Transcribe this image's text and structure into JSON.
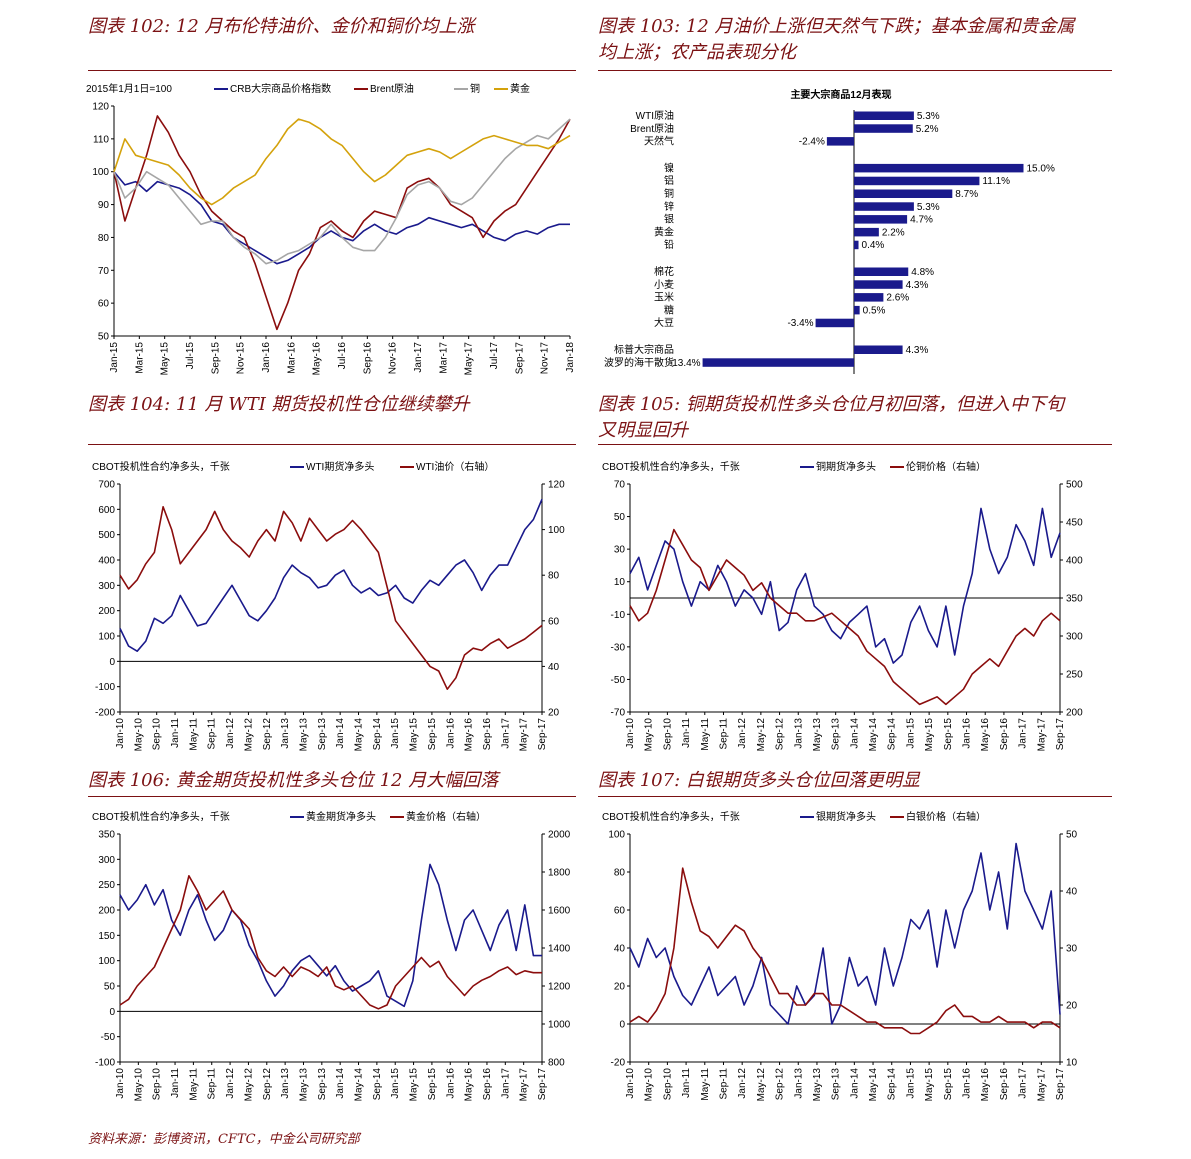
{
  "captions": {
    "c102": "图表 102: 12 月布伦特油价、金价和铜价均上涨",
    "c103_l1": "图表 103: 12 月油价上涨但天然气下跌；基本金属和贵金属",
    "c103_l2": "均上涨；农产品表现分化",
    "c104": "图表 104: 11 月 WTI 期货投机性仓位继续攀升",
    "c105_l1": "图表 105: 铜期货投机性多头仓位月初回落，但进入中下旬",
    "c105_l2": "又明显回升",
    "c106": "图表 106:  黄金期货投机性多头仓位 12 月大幅回落",
    "c107": "图表 107:  白银期货多头仓位回落更明显"
  },
  "footer": "资料来源：彭博资讯，CFTC，中金公司研究部",
  "colors": {
    "navy": "#1a1a8c",
    "maroon": "#8b0d0d",
    "gray": "#a6a6a6",
    "gold": "#d4a20c",
    "bar": "#1a1a8c",
    "neg_label": "#e02020",
    "caption": "#7b1113"
  },
  "chart_data": [
    {
      "id": "c102",
      "type": "line",
      "note": "2015年1月1日=100",
      "xlabels": [
        "Jan-15",
        "Mar-15",
        "May-15",
        "Jul-15",
        "Sep-15",
        "Nov-15",
        "Jan-16",
        "Mar-16",
        "May-16",
        "Jul-16",
        "Sep-16",
        "Nov-16",
        "Jan-17",
        "Mar-17",
        "May-17",
        "Jul-17",
        "Sep-17",
        "Nov-17",
        "Jan-18"
      ],
      "ylim": [
        50,
        120
      ],
      "yticks": [
        50,
        60,
        70,
        80,
        90,
        100,
        110,
        120
      ],
      "legend": [
        "CRB大宗商品价格指数",
        "Brent原油",
        "铜",
        "黄金"
      ],
      "series": [
        {
          "name": "CRB大宗商品价格指数",
          "color": "navy",
          "values": [
            100,
            96,
            97,
            94,
            97,
            96,
            95,
            93,
            90,
            85,
            84,
            80,
            78,
            76,
            74,
            72,
            73,
            75,
            77,
            80,
            82,
            80,
            79,
            82,
            84,
            82,
            81,
            83,
            84,
            86,
            85,
            84,
            83,
            84,
            82,
            80,
            79,
            81,
            82,
            81,
            83,
            84,
            84
          ]
        },
        {
          "name": "Brent原油",
          "color": "maroon",
          "values": [
            100,
            85,
            95,
            105,
            117,
            112,
            105,
            100,
            93,
            88,
            85,
            82,
            80,
            72,
            62,
            52,
            60,
            70,
            75,
            83,
            85,
            82,
            80,
            85,
            88,
            87,
            86,
            95,
            97,
            98,
            95,
            90,
            88,
            86,
            80,
            85,
            88,
            90,
            95,
            100,
            105,
            110,
            116
          ]
        },
        {
          "name": "铜",
          "color": "gray",
          "values": [
            100,
            92,
            95,
            100,
            98,
            96,
            92,
            88,
            84,
            85,
            85,
            80,
            77,
            75,
            72,
            73,
            75,
            76,
            78,
            80,
            84,
            80,
            77,
            76,
            76,
            80,
            86,
            93,
            96,
            97,
            95,
            91,
            90,
            92,
            96,
            100,
            104,
            107,
            109,
            111,
            110,
            113,
            116
          ]
        },
        {
          "name": "黄金",
          "color": "gold",
          "values": [
            100,
            110,
            105,
            104,
            103,
            102,
            99,
            95,
            92,
            90,
            92,
            95,
            97,
            99,
            104,
            108,
            113,
            116,
            115,
            113,
            110,
            108,
            104,
            100,
            97,
            99,
            102,
            105,
            106,
            107,
            106,
            104,
            106,
            108,
            110,
            111,
            110,
            109,
            108,
            108,
            107,
            109,
            111
          ]
        }
      ]
    },
    {
      "id": "c103",
      "type": "bar",
      "title": "主要大宗商品12月表现",
      "categories": [
        "WTI原油",
        "Brent原油",
        "天然气",
        "镍",
        "铝",
        "铜",
        "锌",
        "银",
        "黄金",
        "铅",
        "棉花",
        "小麦",
        "玉米",
        "糖",
        "大豆",
        "标普大宗商品",
        "波罗的海干散货"
      ],
      "values": [
        5.3,
        5.2,
        -2.4,
        15.0,
        11.1,
        8.7,
        5.3,
        4.7,
        2.2,
        0.4,
        4.8,
        4.3,
        2.6,
        0.5,
        -3.4,
        4.3,
        -13.4
      ],
      "labels": [
        "5.3%",
        "5.2%",
        "-2.4%",
        "15.0%",
        "11.1%",
        "8.7%",
        "5.3%",
        "4.7%",
        "2.2%",
        "0.4%",
        "4.8%",
        "4.3%",
        "2.6%",
        "0.5%",
        "-3.4%",
        "4.3%",
        "-13.4%"
      ]
    },
    {
      "id": "c104",
      "type": "line",
      "note": "CBOT投机性合约净多头，千张",
      "xlabels": [
        "Jan-10",
        "May-10",
        "Sep-10",
        "Jan-11",
        "May-11",
        "Sep-11",
        "Jan-12",
        "May-12",
        "Sep-12",
        "Jan-13",
        "May-13",
        "Sep-13",
        "Jan-14",
        "May-14",
        "Sep-14",
        "Jan-15",
        "May-15",
        "Sep-15",
        "Jan-16",
        "May-16",
        "Sep-16",
        "Jan-17",
        "May-17",
        "Sep-17"
      ],
      "ylim": [
        -200,
        700
      ],
      "yticks": [
        -200,
        -100,
        0,
        100,
        200,
        300,
        400,
        500,
        600,
        700
      ],
      "y2lim": [
        20,
        120
      ],
      "y2ticks": [
        20,
        40,
        60,
        80,
        100,
        120
      ],
      "legend": [
        "WTI期货净多头",
        "WTI油价（右轴）"
      ],
      "series": [
        {
          "name": "WTI期货净多头",
          "color": "navy",
          "axis": "left",
          "values": [
            130,
            60,
            40,
            80,
            170,
            150,
            180,
            260,
            200,
            140,
            150,
            200,
            250,
            300,
            240,
            180,
            160,
            200,
            250,
            330,
            380,
            350,
            330,
            290,
            300,
            340,
            360,
            300,
            270,
            290,
            260,
            270,
            300,
            250,
            230,
            280,
            320,
            300,
            340,
            380,
            400,
            350,
            280,
            340,
            380,
            380,
            450,
            520,
            560,
            640
          ]
        },
        {
          "name": "WTI油价（右轴）",
          "color": "maroon",
          "axis": "right",
          "values": [
            80,
            74,
            78,
            85,
            90,
            110,
            100,
            85,
            90,
            95,
            100,
            108,
            100,
            95,
            92,
            88,
            95,
            100,
            95,
            108,
            103,
            95,
            105,
            100,
            95,
            98,
            100,
            104,
            100,
            95,
            90,
            75,
            60,
            55,
            50,
            45,
            40,
            38,
            30,
            35,
            45,
            48,
            47,
            50,
            52,
            48,
            50,
            52,
            55,
            58
          ]
        }
      ]
    },
    {
      "id": "c105",
      "type": "line",
      "note": "CBOT投机性合约净多头，千张",
      "xlabels": [
        "Jan-10",
        "May-10",
        "Sep-10",
        "Jan-11",
        "May-11",
        "Sep-11",
        "Jan-12",
        "May-12",
        "Sep-12",
        "Jan-13",
        "May-13",
        "Sep-13",
        "Jan-14",
        "May-14",
        "Sep-14",
        "Jan-15",
        "May-15",
        "Sep-15",
        "Jan-16",
        "May-16",
        "Sep-16",
        "Jan-17",
        "May-17",
        "Sep-17"
      ],
      "ylim": [
        -70,
        70
      ],
      "yticks": [
        -70,
        -50,
        -30,
        -10,
        10,
        30,
        50,
        70
      ],
      "y2lim": [
        200,
        500
      ],
      "y2ticks": [
        200,
        250,
        300,
        350,
        400,
        450,
        500
      ],
      "legend": [
        "铜期货净多头",
        "伦铜价格（右轴）"
      ],
      "series": [
        {
          "name": "铜期货净多头",
          "color": "navy",
          "axis": "left",
          "values": [
            15,
            25,
            5,
            20,
            35,
            30,
            10,
            -5,
            10,
            5,
            20,
            10,
            -5,
            5,
            0,
            -10,
            10,
            -20,
            -15,
            5,
            15,
            -5,
            -10,
            -20,
            -25,
            -15,
            -10,
            -5,
            -30,
            -25,
            -40,
            -35,
            -15,
            -5,
            -20,
            -30,
            -5,
            -35,
            -5,
            15,
            55,
            30,
            15,
            25,
            45,
            35,
            20,
            55,
            25,
            40
          ]
        },
        {
          "name": "伦铜价格（右轴）",
          "color": "maroon",
          "axis": "right",
          "values": [
            340,
            320,
            330,
            360,
            400,
            440,
            420,
            400,
            390,
            360,
            380,
            400,
            390,
            380,
            360,
            370,
            350,
            340,
            330,
            330,
            320,
            320,
            325,
            330,
            320,
            310,
            300,
            280,
            270,
            260,
            240,
            230,
            220,
            210,
            215,
            220,
            210,
            220,
            230,
            250,
            260,
            270,
            260,
            280,
            300,
            310,
            300,
            320,
            330,
            320
          ]
        }
      ]
    },
    {
      "id": "c106",
      "type": "line",
      "note": "CBOT投机性合约净多头，千张",
      "xlabels": [
        "Jan-10",
        "May-10",
        "Sep-10",
        "Jan-11",
        "May-11",
        "Sep-11",
        "Jan-12",
        "May-12",
        "Sep-12",
        "Jan-13",
        "May-13",
        "Sep-13",
        "Jan-14",
        "May-14",
        "Sep-14",
        "Jan-15",
        "May-15",
        "Sep-15",
        "Jan-16",
        "May-16",
        "Sep-16",
        "Jan-17",
        "May-17",
        "Sep-17"
      ],
      "ylim": [
        -100,
        350
      ],
      "yticks": [
        -100,
        -50,
        0,
        50,
        100,
        150,
        200,
        250,
        300,
        350
      ],
      "y2lim": [
        800,
        2000
      ],
      "y2ticks": [
        800,
        1000,
        1200,
        1400,
        1600,
        1800,
        2000
      ],
      "legend": [
        "黄金期货净多头",
        "黄金价格（右轴）"
      ],
      "series": [
        {
          "name": "黄金期货净多头",
          "color": "navy",
          "axis": "left",
          "values": [
            230,
            200,
            220,
            250,
            210,
            240,
            180,
            150,
            200,
            230,
            180,
            140,
            160,
            200,
            180,
            130,
            100,
            60,
            30,
            50,
            80,
            100,
            110,
            90,
            70,
            90,
            60,
            40,
            50,
            60,
            80,
            30,
            20,
            10,
            60,
            180,
            290,
            250,
            180,
            120,
            180,
            200,
            160,
            120,
            170,
            200,
            120,
            210,
            110,
            110
          ]
        },
        {
          "name": "黄金价格（右轴）",
          "color": "maroon",
          "axis": "right",
          "values": [
            1100,
            1130,
            1200,
            1250,
            1300,
            1400,
            1500,
            1600,
            1780,
            1700,
            1600,
            1650,
            1700,
            1600,
            1550,
            1500,
            1350,
            1280,
            1250,
            1300,
            1250,
            1300,
            1280,
            1250,
            1300,
            1200,
            1180,
            1200,
            1150,
            1100,
            1080,
            1100,
            1200,
            1250,
            1300,
            1350,
            1300,
            1330,
            1250,
            1200,
            1150,
            1200,
            1230,
            1250,
            1280,
            1300,
            1260,
            1280,
            1270,
            1270
          ]
        }
      ]
    },
    {
      "id": "c107",
      "type": "line",
      "note": "CBOT投机性合约净多头，千张",
      "xlabels": [
        "Jan-10",
        "May-10",
        "Sep-10",
        "Jan-11",
        "May-11",
        "Sep-11",
        "Jan-12",
        "May-12",
        "Sep-12",
        "Jan-13",
        "May-13",
        "Sep-13",
        "Jan-14",
        "May-14",
        "Sep-14",
        "Jan-15",
        "May-15",
        "Sep-15",
        "Jan-16",
        "May-16",
        "Sep-16",
        "Jan-17",
        "May-17",
        "Sep-17"
      ],
      "ylim": [
        -20,
        100
      ],
      "yticks": [
        -20,
        0,
        20,
        40,
        60,
        80,
        100
      ],
      "y2lim": [
        10,
        50
      ],
      "y2ticks": [
        10,
        20,
        30,
        40,
        50
      ],
      "legend": [
        "银期货净多头",
        "白银价格（右轴）"
      ],
      "series": [
        {
          "name": "银期货净多头",
          "color": "navy",
          "axis": "left",
          "values": [
            40,
            30,
            45,
            35,
            40,
            25,
            15,
            10,
            20,
            30,
            15,
            20,
            25,
            10,
            20,
            35,
            10,
            5,
            0,
            20,
            10,
            15,
            40,
            0,
            10,
            35,
            20,
            25,
            10,
            40,
            20,
            35,
            55,
            50,
            60,
            30,
            60,
            40,
            60,
            70,
            90,
            60,
            80,
            50,
            95,
            70,
            60,
            50,
            70,
            5
          ]
        },
        {
          "name": "白银价格（右轴）",
          "color": "maroon",
          "axis": "right",
          "values": [
            17,
            18,
            17,
            19,
            22,
            30,
            44,
            38,
            33,
            32,
            30,
            32,
            34,
            33,
            30,
            28,
            25,
            22,
            22,
            20,
            20,
            22,
            22,
            20,
            20,
            19,
            18,
            17,
            17,
            16,
            16,
            16,
            15,
            15,
            16,
            17,
            19,
            20,
            18,
            18,
            17,
            17,
            18,
            17,
            17,
            17,
            16,
            17,
            17,
            16
          ]
        }
      ]
    }
  ]
}
